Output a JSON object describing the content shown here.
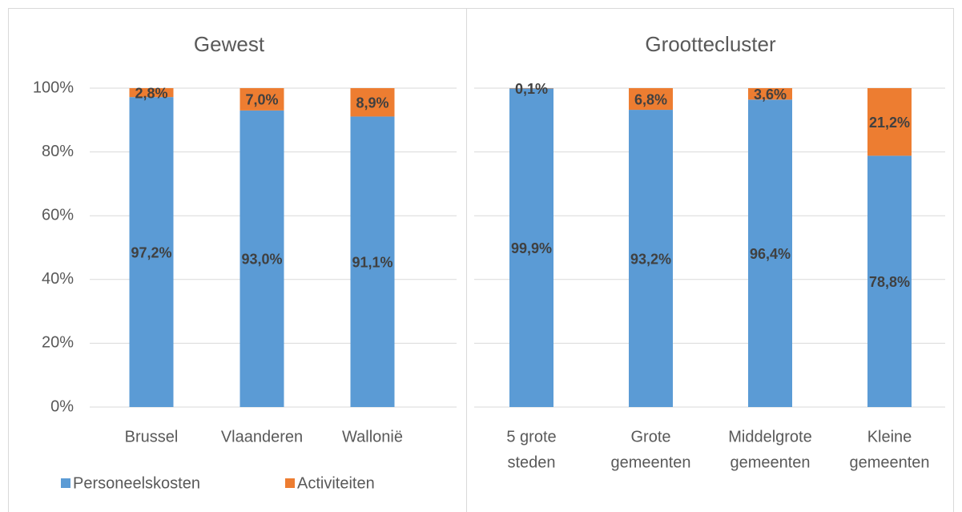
{
  "chart_data": [
    {
      "type": "stacked_bar",
      "title": "Gewest",
      "categories": [
        [
          "Brussel"
        ],
        [
          "Vlaanderen"
        ],
        [
          "Wallonië"
        ]
      ],
      "series": [
        {
          "name": "Personeelskosten",
          "color": "#5b9bd5",
          "values": [
            97.2,
            93.0,
            91.1
          ],
          "value_labels": [
            "97,2%",
            "93,0%",
            "91,1%"
          ]
        },
        {
          "name": "Activiteiten",
          "color": "#ed7d31",
          "values": [
            2.8,
            7.0,
            8.9
          ],
          "value_labels": [
            "2,8%",
            "7,0%",
            "8,9%"
          ]
        }
      ],
      "ylim": [
        0,
        100
      ],
      "yticks": [
        {
          "value": 0,
          "label": "0%"
        },
        {
          "value": 20,
          "label": "20%"
        },
        {
          "value": 40,
          "label": "40%"
        },
        {
          "value": 60,
          "label": "60%"
        },
        {
          "value": 80,
          "label": "80%"
        },
        {
          "value": 100,
          "label": "100%"
        }
      ],
      "grid": true,
      "legend": "bottom-left"
    },
    {
      "type": "stacked_bar",
      "title": "Groottecluster",
      "categories": [
        [
          "5 grote",
          "steden"
        ],
        [
          "Grote",
          "gemeenten"
        ],
        [
          "Middelgrote",
          "gemeenten"
        ],
        [
          "Kleine",
          "gemeenten"
        ]
      ],
      "series": [
        {
          "color": "#5b9bd5",
          "values": [
            99.9,
            93.2,
            96.4,
            78.8
          ],
          "value_labels": [
            "99,9%",
            "93,2%",
            "96,4%",
            "78,8%"
          ]
        },
        {
          "color": "#ed7d31",
          "values": [
            0.1,
            6.8,
            3.6,
            21.2
          ],
          "value_labels": [
            "0,1%",
            "6,8%",
            "3,6%",
            "21,2%"
          ]
        }
      ],
      "ylim": [
        0,
        100
      ],
      "yticks": [
        0,
        20,
        40,
        60,
        80,
        100
      ],
      "grid": true
    }
  ]
}
